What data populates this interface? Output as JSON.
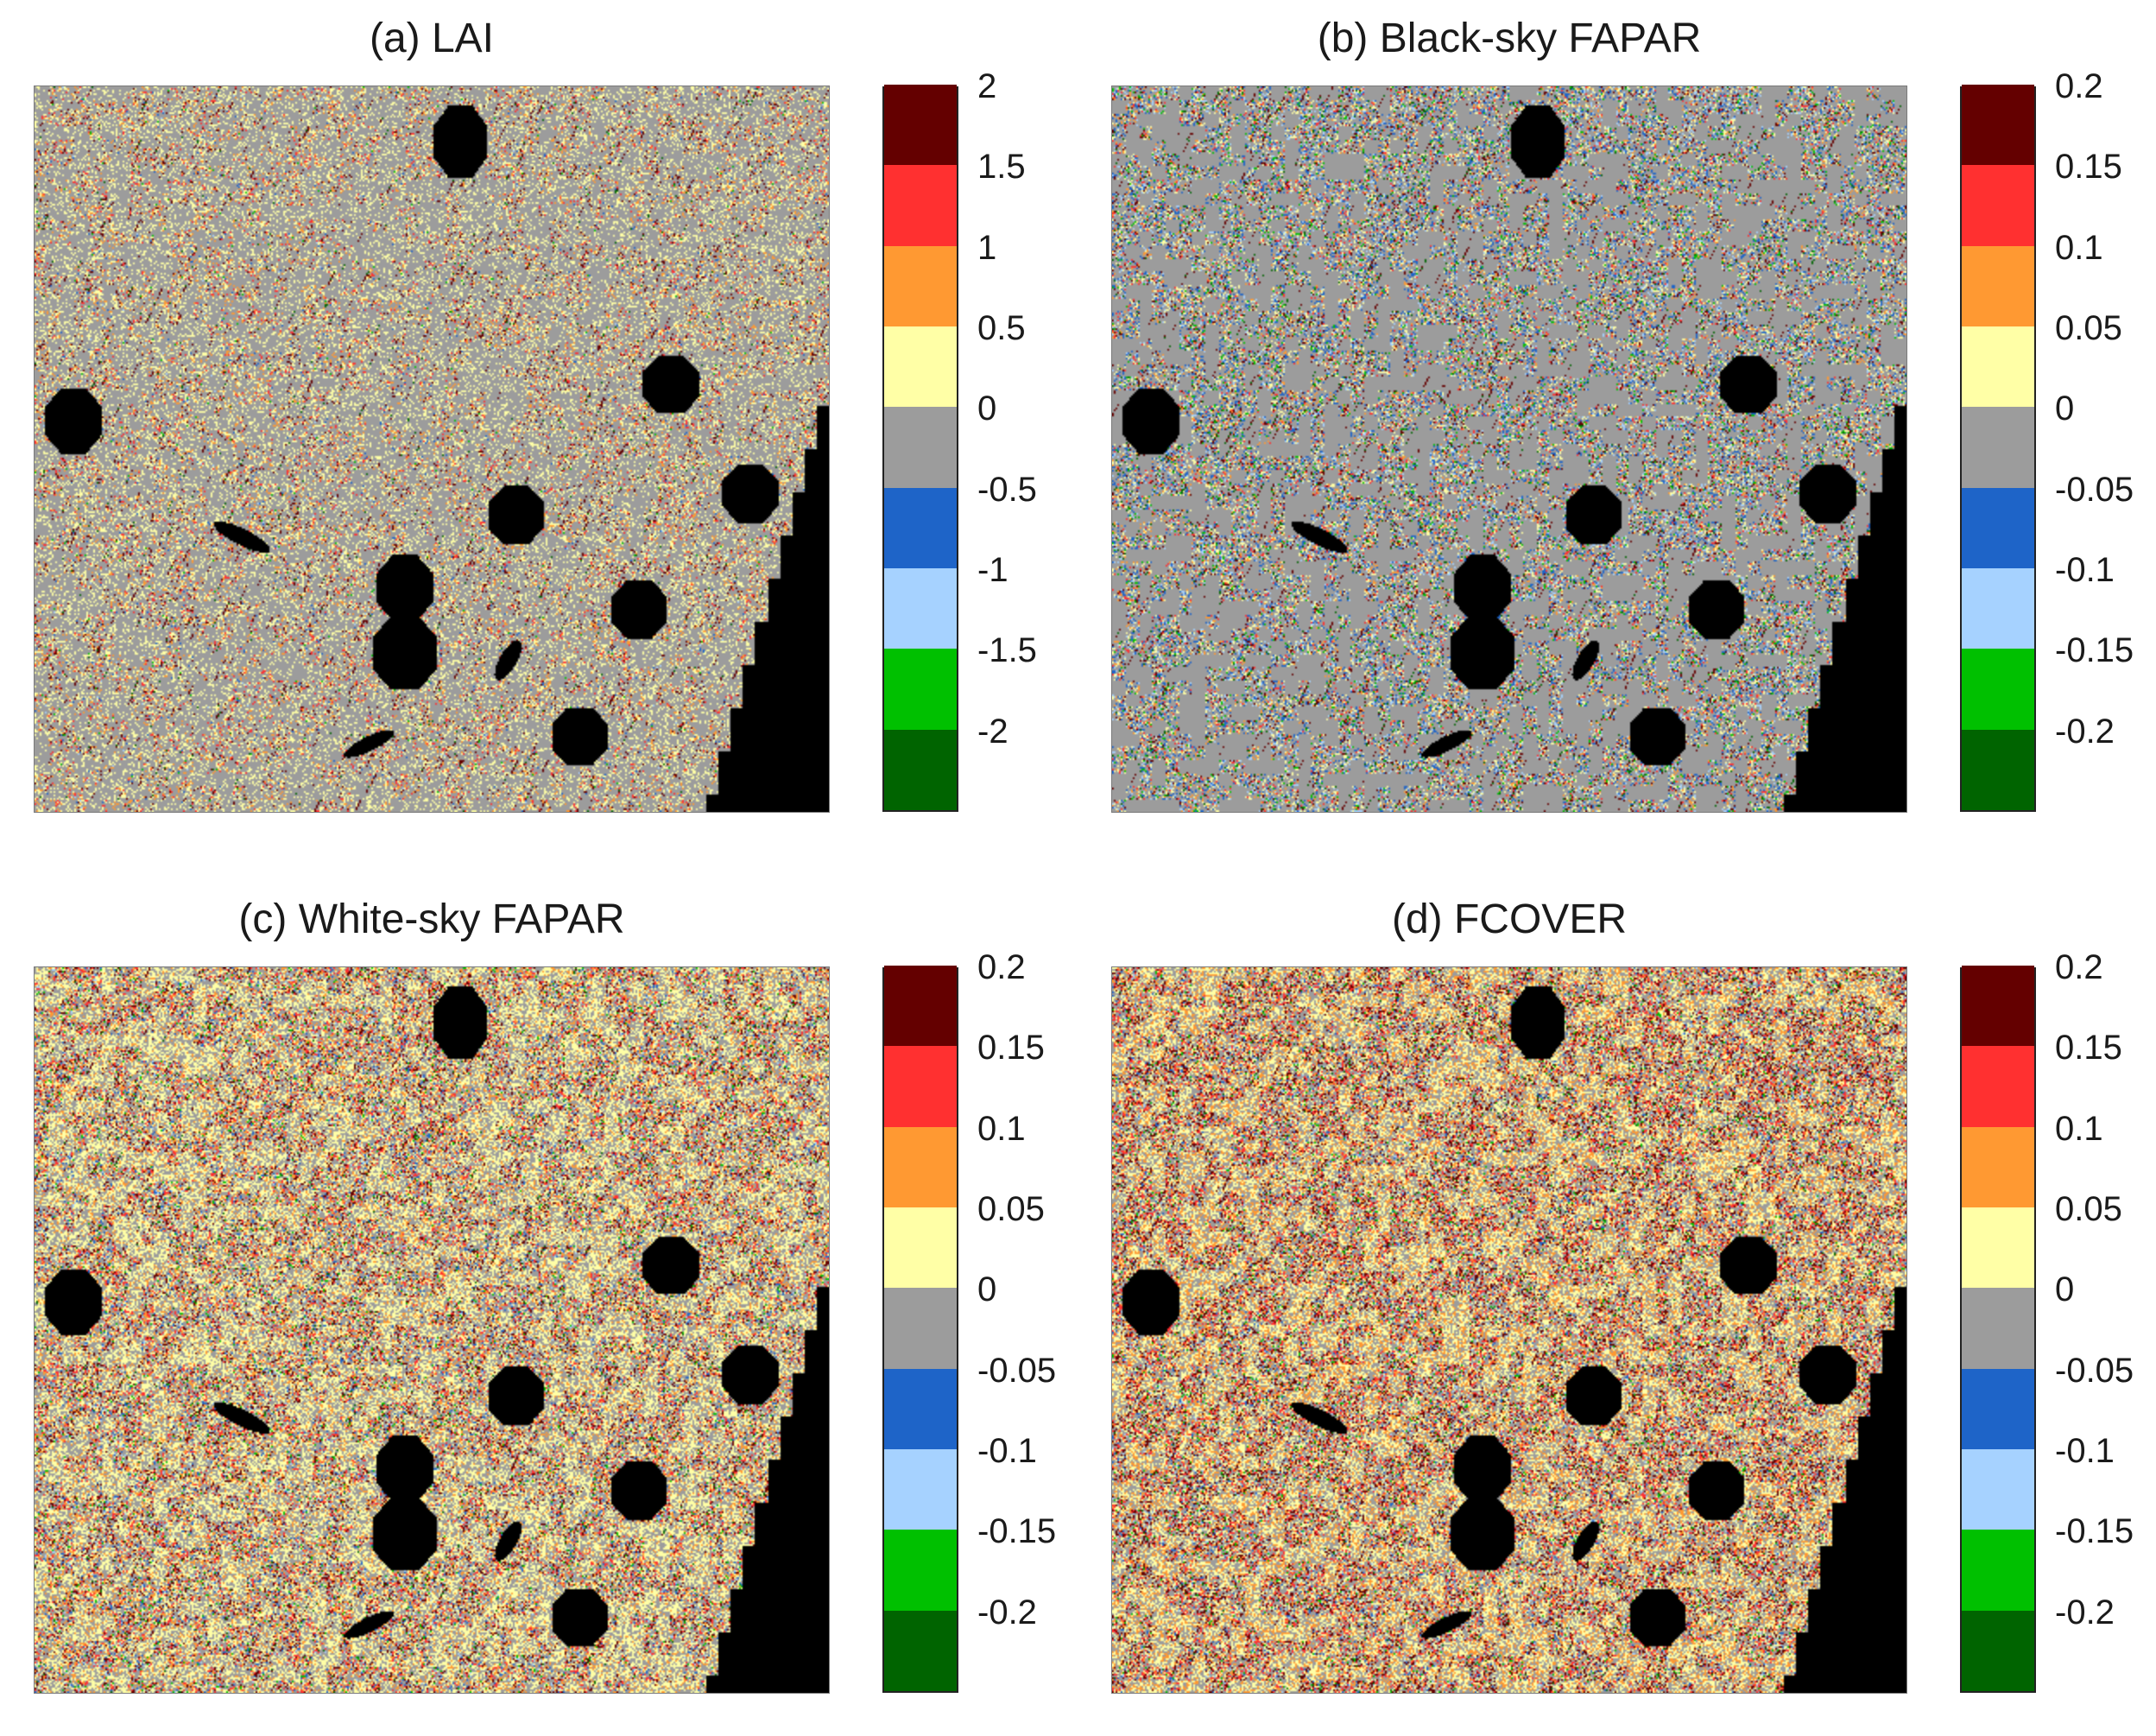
{
  "colorbar_colors": [
    "#006400",
    "#00c000",
    "#a6d2ff",
    "#1e64c8",
    "#9c9c9c",
    "#ffffa6",
    "#ff9932",
    "#ff3030",
    "#640000"
  ],
  "panels": [
    {
      "id": "a",
      "title": "(a) LAI",
      "colorbar_ticks": [
        "-2",
        "-1.5",
        "-1",
        "-0.5",
        "0",
        "0.5",
        "1",
        "1.5",
        "2"
      ],
      "pattern": "sparse-positive"
    },
    {
      "id": "b",
      "title": "(b) Black-sky FAPAR",
      "colorbar_ticks": [
        "-0.2",
        "-0.15",
        "-0.1",
        "-0.05",
        "0",
        "0.05",
        "0.1",
        "0.15",
        "0.2"
      ],
      "pattern": "mixed-noise"
    },
    {
      "id": "c",
      "title": "(c) White-sky FAPAR",
      "colorbar_ticks": [
        "-0.2",
        "-0.15",
        "-0.1",
        "-0.05",
        "0",
        "0.05",
        "0.1",
        "0.15",
        "0.2"
      ],
      "pattern": "dense-positive"
    },
    {
      "id": "d",
      "title": "(d) FCOVER",
      "colorbar_ticks": [
        "-0.2",
        "-0.15",
        "-0.1",
        "-0.05",
        "0",
        "0.05",
        "0.1",
        "0.15",
        "0.2"
      ],
      "pattern": "dense-positive-red"
    }
  ]
}
